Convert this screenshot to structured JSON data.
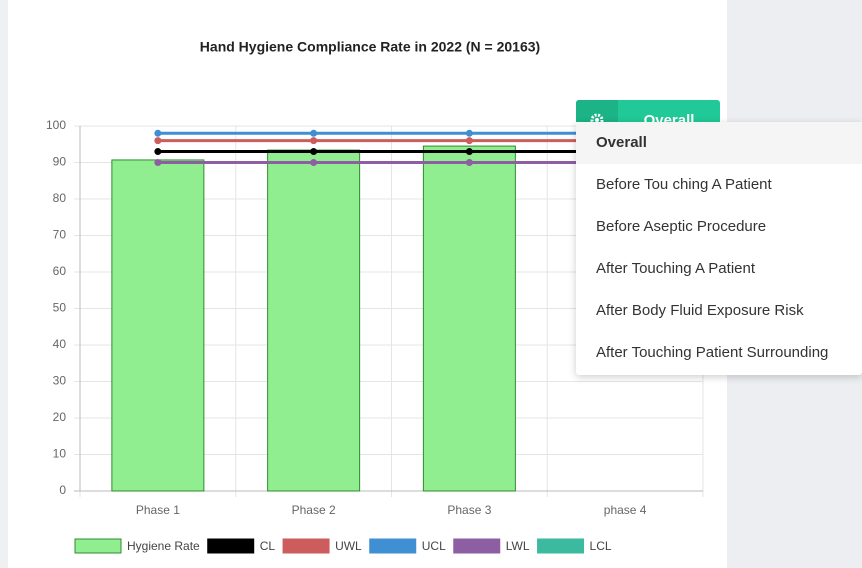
{
  "chart_data": {
    "type": "bar",
    "title": "Hand Hygiene Compliance Rate in 2022 (N = 20163)",
    "categories": [
      "Phase 1",
      "Phase 2",
      "Phase 3",
      "phase 4"
    ],
    "series": [
      {
        "name": "Hygiene Rate",
        "type": "bar",
        "color": "#90ee90",
        "values": [
          90.7,
          93.4,
          94.5,
          null
        ]
      },
      {
        "name": "CL",
        "type": "line",
        "color": "#000000",
        "values": [
          93,
          93,
          93,
          93
        ]
      },
      {
        "name": "UWL",
        "type": "line",
        "color": "#cd5c5c",
        "values": [
          96,
          96,
          96,
          96
        ]
      },
      {
        "name": "UCL",
        "type": "line",
        "color": "#3f8fd2",
        "values": [
          98,
          98,
          98,
          98
        ]
      },
      {
        "name": "LWL",
        "type": "line",
        "color": "#8e5ea2",
        "values": [
          90,
          90,
          90,
          90
        ]
      },
      {
        "name": "LCL",
        "type": "line",
        "color": "#3cba9f",
        "values": [
          null,
          null,
          null,
          null
        ]
      }
    ],
    "ylim": [
      0,
      100
    ],
    "yticks": [
      0,
      10,
      20,
      30,
      40,
      50,
      60,
      70,
      80,
      90,
      100
    ],
    "grid": true,
    "legend": "bottom"
  },
  "filter": {
    "button": "Overall",
    "options": [
      "Overall",
      "Before Tou ching A Patient",
      "Before Aseptic Procedure",
      "After Touching A Patient",
      "After Body Fluid Exposure Risk",
      "After Touching Patient Surrounding"
    ]
  }
}
